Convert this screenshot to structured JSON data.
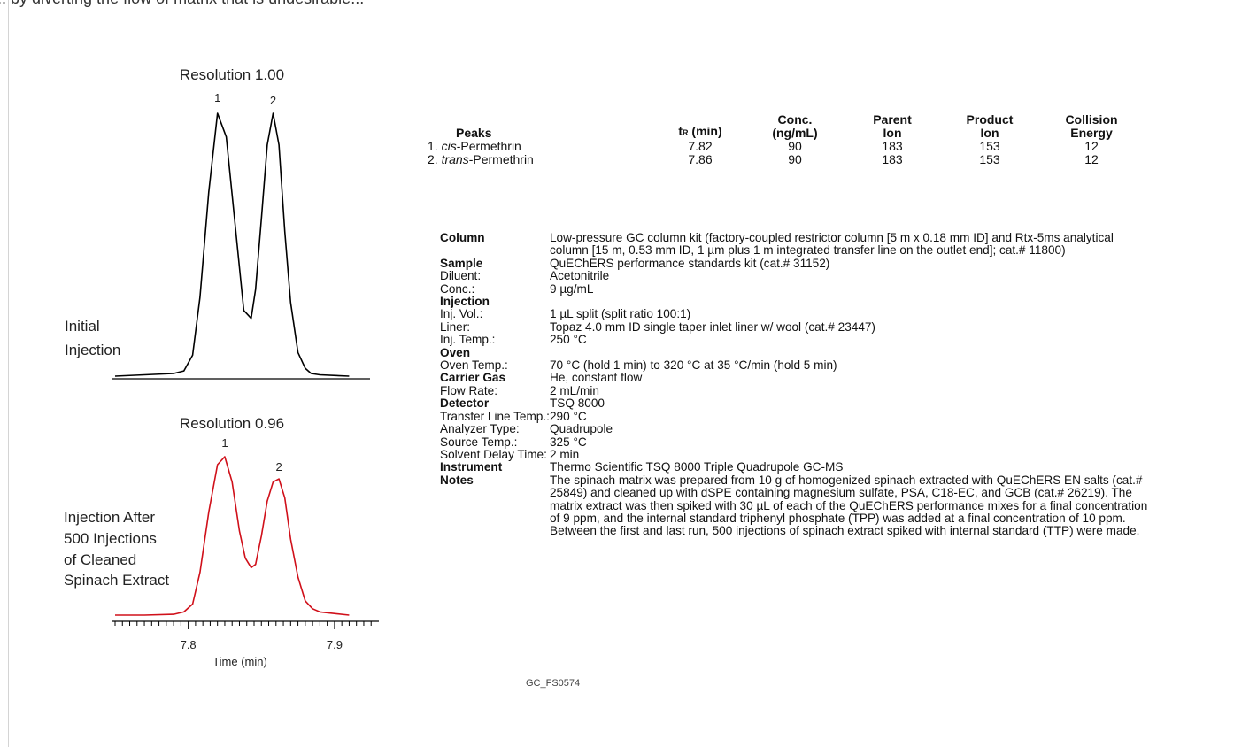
{
  "header_text": "... by diverting the flow of matrix that is undesirable...",
  "chart_data": [
    {
      "type": "line",
      "title": "Resolution 1.00",
      "annotation": "Initial Injection",
      "annotation_lines": [
        "Initial",
        "Injection"
      ],
      "color": "#000000",
      "peak_labels": [
        "1",
        "2"
      ],
      "x": [
        7.75,
        7.77,
        7.79,
        7.797,
        7.803,
        7.808,
        7.814,
        7.82,
        7.826,
        7.832,
        7.838,
        7.843,
        7.846,
        7.85,
        7.854,
        7.858,
        7.862,
        7.866,
        7.87,
        7.875,
        7.88,
        7.884,
        7.89,
        7.91
      ],
      "y": [
        0,
        0.5,
        1,
        2,
        8,
        30,
        70,
        100,
        91,
        58,
        25,
        22,
        33,
        60,
        88,
        100,
        88,
        55,
        28,
        9,
        3,
        1,
        0.5,
        0
      ]
    },
    {
      "type": "line",
      "title": "Resolution 0.96",
      "annotation": "Injection After 500 Injections of Cleaned Spinach Extract",
      "annotation_lines": [
        "Injection After",
        "500 Injections",
        "of Cleaned",
        "Spinach Extract"
      ],
      "color": "#d0101a",
      "peak_labels": [
        "1",
        "2"
      ],
      "x": [
        7.75,
        7.77,
        7.79,
        7.797,
        7.803,
        7.808,
        7.814,
        7.82,
        7.825,
        7.83,
        7.835,
        7.839,
        7.843,
        7.846,
        7.85,
        7.854,
        7.858,
        7.862,
        7.866,
        7.87,
        7.875,
        7.88,
        7.885,
        7.89,
        7.91
      ],
      "y": [
        0,
        0,
        0.5,
        2,
        7,
        27,
        65,
        95,
        100,
        84,
        53,
        36,
        30,
        32,
        50,
        72,
        84,
        86,
        74,
        48,
        24,
        9,
        4,
        2,
        0
      ],
      "xlabel": "Time (min)",
      "xticks": [
        "7.8",
        "7.9"
      ],
      "xlim": [
        7.75,
        7.93
      ]
    }
  ],
  "peaks_table": {
    "headers": [
      "Peaks",
      "tR (min)",
      "Conc. (ng/mL)",
      "Parent Ion",
      "Product Ion",
      "Collision Energy"
    ],
    "rows": [
      {
        "num": "1.",
        "prefix": "cis",
        "suffix": "-Permethrin",
        "tr": "7.82",
        "conc": "90",
        "parent": "183",
        "product": "153",
        "ce": "12"
      },
      {
        "num": "2.",
        "prefix": "trans",
        "suffix": "-Permethrin",
        "tr": "7.86",
        "conc": "90",
        "parent": "183",
        "product": "153",
        "ce": "12"
      }
    ]
  },
  "conditions": [
    {
      "label": "Column",
      "bold": true,
      "value": "Low-pressure GC column kit (factory-coupled restrictor column [5 m x 0.18 mm ID] and Rtx-5ms analytical column [15 m, 0.53 mm ID, 1 µm plus 1 m integrated transfer line on the outlet end]; cat.# 11800)"
    },
    {
      "label": "Sample",
      "bold": true,
      "value": "QuEChERS performance standards kit (cat.# 31152)"
    },
    {
      "label": "Diluent:",
      "bold": false,
      "value": "Acetonitrile"
    },
    {
      "label": "Conc.:",
      "bold": false,
      "value": "9 µg/mL"
    },
    {
      "label": "Injection",
      "bold": true,
      "value": ""
    },
    {
      "label": "Inj. Vol.:",
      "bold": false,
      "value": "1 µL split (split ratio 100:1)"
    },
    {
      "label": "Liner:",
      "bold": false,
      "value": "Topaz 4.0 mm ID single taper inlet liner w/ wool (cat.# 23447)"
    },
    {
      "label": "Inj. Temp.:",
      "bold": false,
      "value": "250 °C"
    },
    {
      "label": "Oven",
      "bold": true,
      "value": ""
    },
    {
      "label": "Oven Temp.:",
      "bold": false,
      "value": "70 °C (hold 1 min) to 320 °C at 35 °C/min (hold 5 min)"
    },
    {
      "label": "Carrier Gas",
      "bold": true,
      "value": "He, constant flow"
    },
    {
      "label": "Flow Rate:",
      "bold": false,
      "value": "2 mL/min"
    },
    {
      "label": "Detector",
      "bold": true,
      "value": "TSQ 8000"
    },
    {
      "label": "Transfer Line Temp.:",
      "bold": false,
      "value": "290 °C"
    },
    {
      "label": "Analyzer Type:",
      "bold": false,
      "value": "Quadrupole"
    },
    {
      "label": "Source Temp.:",
      "bold": false,
      "value": "325 °C"
    },
    {
      "label": "Solvent Delay Time:",
      "bold": false,
      "value": "2 min"
    },
    {
      "label": "Instrument",
      "bold": true,
      "value": "Thermo Scientific TSQ 8000 Triple Quadrupole GC-MS"
    },
    {
      "label": "Notes",
      "bold": true,
      "value": "The spinach matrix was prepared from 10 g of homogenized spinach extracted with QuEChERS EN salts (cat.# 25849) and cleaned up with dSPE containing magnesium sulfate, PSA, C18-EC, and GCB (cat.# 26219). The matrix extract was then spiked with 30 µL of each of the QuEChERS performance mixes for a final concentration of 9 ppm, and the internal standard triphenyl phosphate (TPP) was added at a final concentration of 10 ppm. Between the first and last run, 500 injections of spinach extract spiked with internal standard (TTP) were made."
    }
  ],
  "figure_code": "GC_FS0574"
}
